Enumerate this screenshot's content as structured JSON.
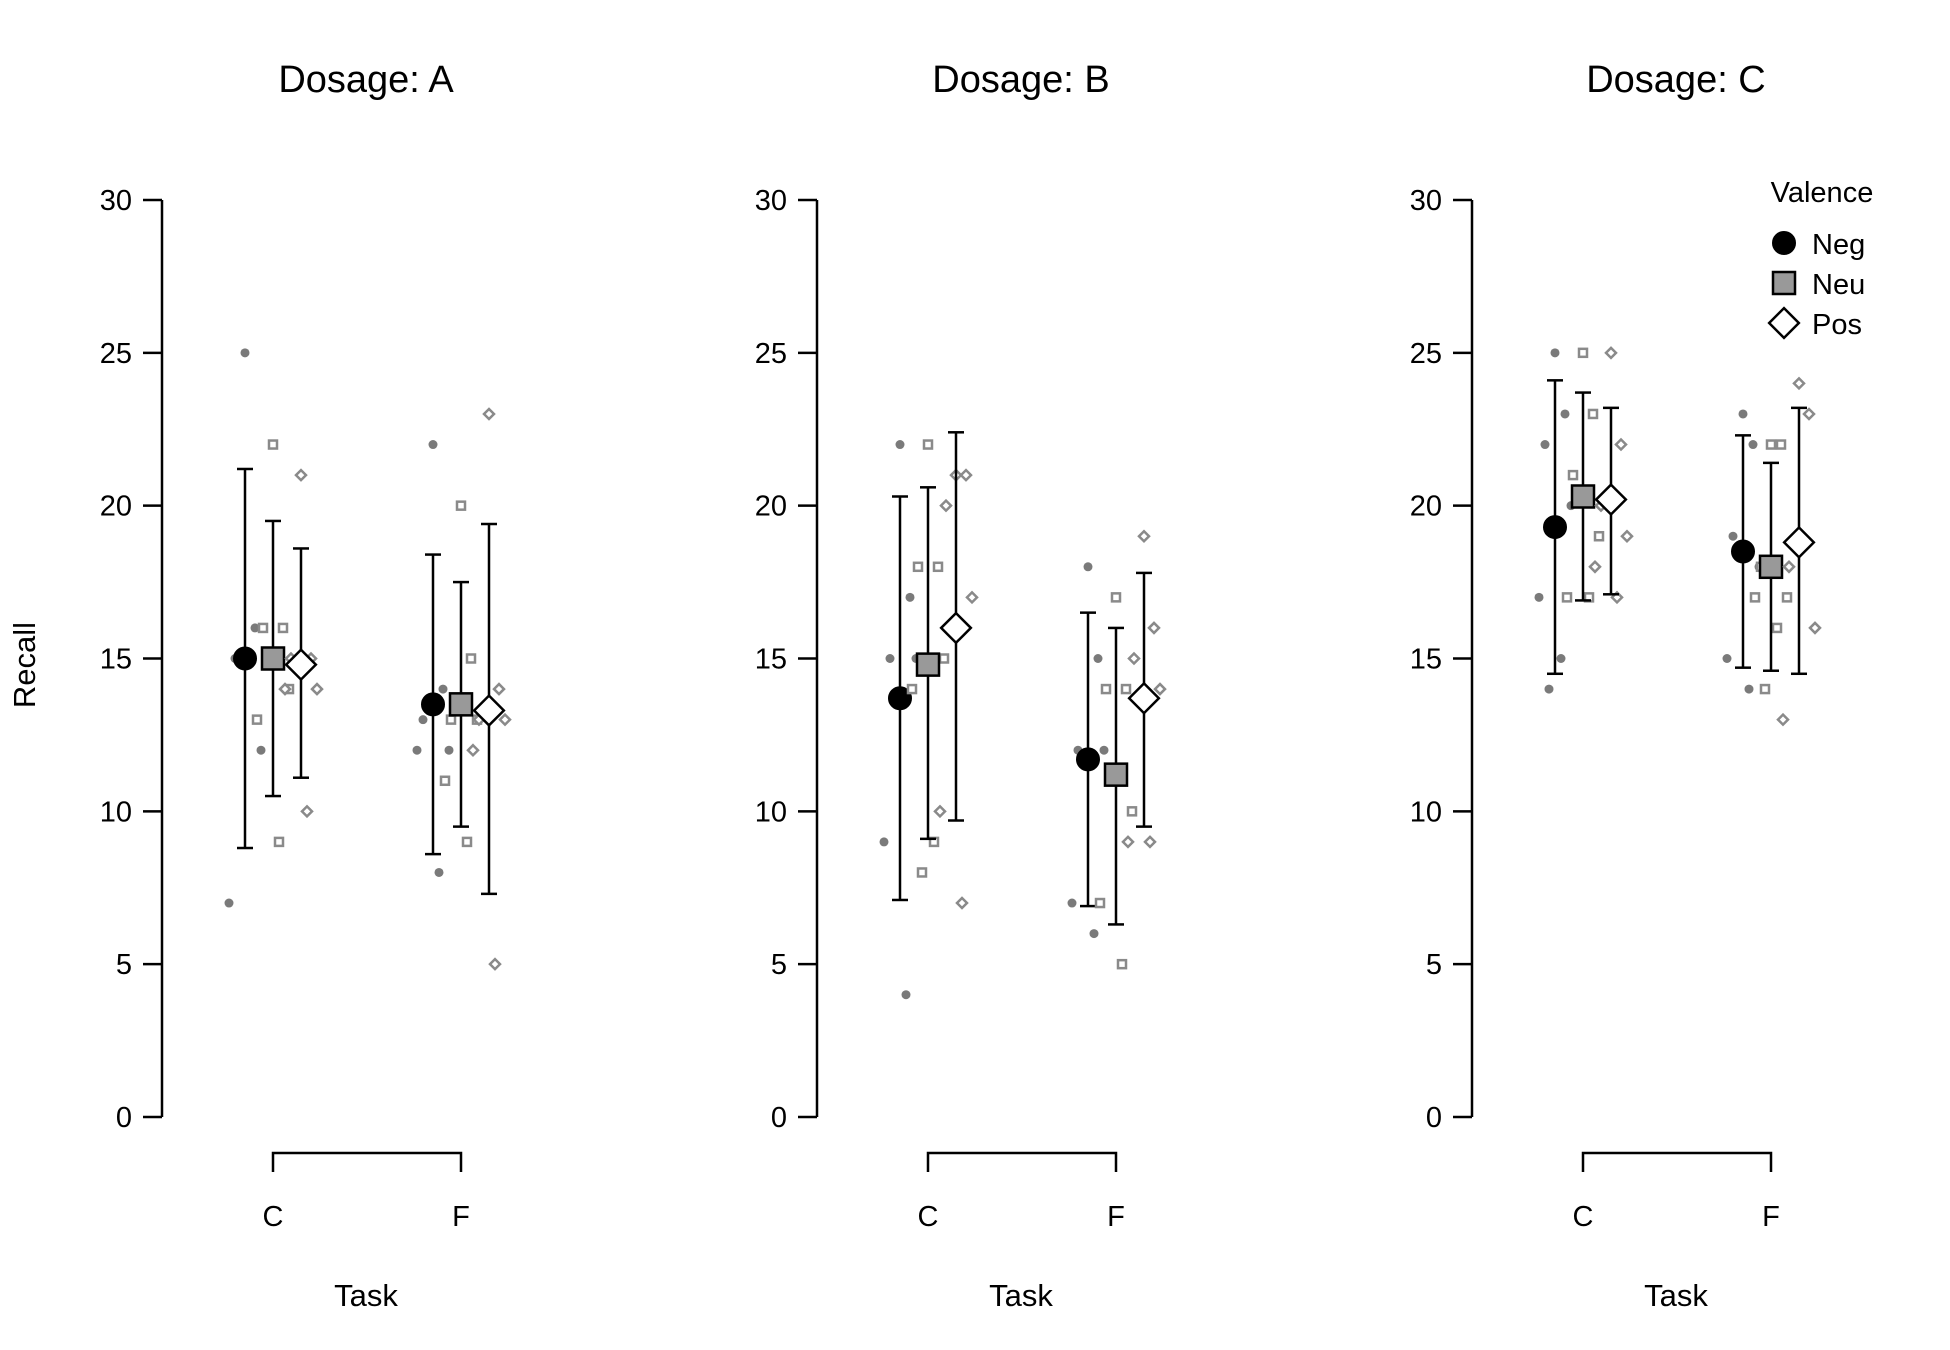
{
  "chart_data": {
    "type": "scatter",
    "ylabel": "Recall",
    "xlabel": "Task",
    "ylim": [
      0,
      30
    ],
    "yticks": [
      0,
      5,
      10,
      15,
      20,
      25,
      30
    ],
    "categories": [
      "C",
      "F"
    ],
    "legend": {
      "title": "Valence",
      "placement": "top-right",
      "entries": [
        "Neg",
        "Neu",
        "Pos"
      ]
    },
    "series_style": {
      "Neg": {
        "marker": "circle",
        "fill": "#000000"
      },
      "Neu": {
        "marker": "square",
        "fill": "#999999"
      },
      "Pos": {
        "marker": "diamond",
        "fill": "#ffffff"
      }
    },
    "panels": [
      {
        "title": "Dosage: A",
        "groups": [
          {
            "task": "C",
            "valence": "Neg",
            "mean": 15.0,
            "lower": 8.8,
            "upper": 21.2,
            "points": [
              25,
              16,
              15,
              12,
              7
            ]
          },
          {
            "task": "C",
            "valence": "Neu",
            "mean": 15.0,
            "lower": 10.5,
            "upper": 19.5,
            "points": [
              22,
              16,
              16,
              14,
              13,
              9
            ]
          },
          {
            "task": "C",
            "valence": "Pos",
            "mean": 14.8,
            "lower": 11.1,
            "upper": 18.6,
            "points": [
              21,
              15,
              15,
              14,
              14,
              10
            ]
          },
          {
            "task": "F",
            "valence": "Neg",
            "mean": 13.5,
            "lower": 8.6,
            "upper": 18.4,
            "points": [
              22,
              14,
              13,
              12,
              12,
              8
            ]
          },
          {
            "task": "F",
            "valence": "Neu",
            "mean": 13.5,
            "lower": 9.5,
            "upper": 17.5,
            "points": [
              20,
              15,
              13,
              13,
              11,
              9
            ]
          },
          {
            "task": "F",
            "valence": "Pos",
            "mean": 13.3,
            "lower": 7.3,
            "upper": 19.4,
            "points": [
              23,
              14,
              13,
              13,
              12,
              5
            ]
          }
        ]
      },
      {
        "title": "Dosage: B",
        "groups": [
          {
            "task": "C",
            "valence": "Neg",
            "mean": 13.7,
            "lower": 7.1,
            "upper": 20.3,
            "points": [
              22,
              17,
              15,
              15,
              9,
              4
            ]
          },
          {
            "task": "C",
            "valence": "Neu",
            "mean": 14.8,
            "lower": 9.1,
            "upper": 20.6,
            "points": [
              22,
              18,
              18,
              15,
              14,
              9,
              8
            ]
          },
          {
            "task": "C",
            "valence": "Pos",
            "mean": 16.0,
            "lower": 9.7,
            "upper": 22.4,
            "points": [
              21,
              21,
              20,
              17,
              10,
              7
            ]
          },
          {
            "task": "F",
            "valence": "Neg",
            "mean": 11.7,
            "lower": 6.9,
            "upper": 16.5,
            "points": [
              18,
              15,
              12,
              12,
              7,
              6
            ]
          },
          {
            "task": "F",
            "valence": "Neu",
            "mean": 11.2,
            "lower": 6.3,
            "upper": 16.0,
            "points": [
              17,
              14,
              14,
              10,
              7,
              5
            ]
          },
          {
            "task": "F",
            "valence": "Pos",
            "mean": 13.7,
            "lower": 9.5,
            "upper": 17.8,
            "points": [
              19,
              16,
              15,
              14,
              9,
              9
            ]
          }
        ]
      },
      {
        "title": "Dosage: C",
        "groups": [
          {
            "task": "C",
            "valence": "Neg",
            "mean": 19.3,
            "lower": 14.5,
            "upper": 24.1,
            "points": [
              25,
              23,
              22,
              20,
              17,
              15,
              14
            ]
          },
          {
            "task": "C",
            "valence": "Neu",
            "mean": 20.3,
            "lower": 16.9,
            "upper": 23.7,
            "points": [
              25,
              23,
              21,
              19,
              17,
              17
            ]
          },
          {
            "task": "C",
            "valence": "Pos",
            "mean": 20.2,
            "lower": 17.1,
            "upper": 23.2,
            "points": [
              25,
              22,
              20,
              19,
              18,
              17
            ]
          },
          {
            "task": "F",
            "valence": "Neg",
            "mean": 18.5,
            "lower": 14.7,
            "upper": 22.3,
            "points": [
              23,
              22,
              19,
              18,
              15,
              14
            ]
          },
          {
            "task": "F",
            "valence": "Neu",
            "mean": 18.0,
            "lower": 14.6,
            "upper": 21.4,
            "points": [
              22,
              22,
              18,
              17,
              17,
              16,
              14
            ]
          },
          {
            "task": "F",
            "valence": "Pos",
            "mean": 18.8,
            "lower": 14.5,
            "upper": 23.2,
            "points": [
              24,
              23,
              18,
              16,
              13
            ]
          }
        ]
      }
    ]
  }
}
